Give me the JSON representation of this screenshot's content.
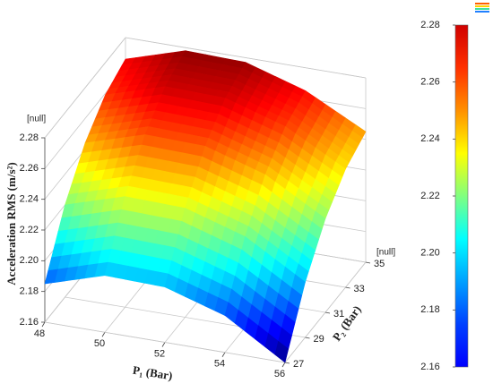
{
  "chart_data": {
    "type": "surface",
    "x_label": "P₁ (Bar)",
    "y_label": "P₂ (Bar)",
    "z_label": "Acceleration RMS (m/s²)",
    "z_unit": "[null]",
    "y_unit": "[null]",
    "x": [
      48,
      50,
      52,
      54,
      56
    ],
    "y": [
      27,
      29,
      31,
      33,
      35
    ],
    "z": [
      [
        2.185,
        2.197,
        2.196,
        2.184,
        2.16
      ],
      [
        2.22,
        2.232,
        2.231,
        2.219,
        2.196
      ],
      [
        2.244,
        2.256,
        2.255,
        2.243,
        2.221
      ],
      [
        2.259,
        2.271,
        2.27,
        2.258,
        2.237
      ],
      [
        2.266,
        2.278,
        2.277,
        2.265,
        2.245
      ]
    ],
    "xlim": [
      48,
      56
    ],
    "xticks": [
      48,
      50,
      52,
      54,
      56
    ],
    "ylim": [
      27,
      35
    ],
    "yticks": [
      27,
      29,
      31,
      33,
      35
    ],
    "zlim": [
      2.16,
      2.28
    ],
    "zticks": [
      2.16,
      2.18,
      {
        "value": 2.2,
        "label": "2.20"
      },
      2.22,
      2.24,
      2.26,
      2.28
    ],
    "colormap": "jet",
    "colorbar": {
      "lim": [
        2.16,
        2.28
      ],
      "ticks": [
        2.16,
        2.18,
        {
          "value": 2.2,
          "label": "2.20"
        },
        2.22,
        2.24,
        2.26,
        2.28
      ]
    }
  }
}
